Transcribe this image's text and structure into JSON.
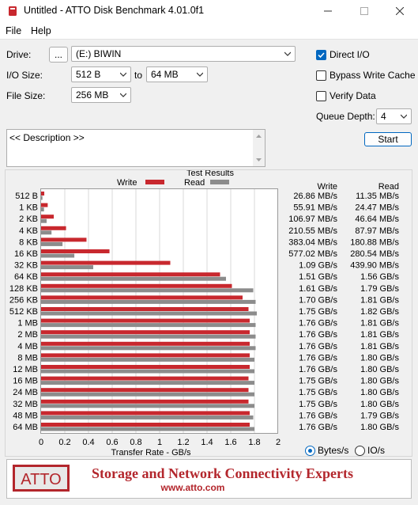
{
  "window": {
    "title": "Untitled - ATTO Disk Benchmark 4.01.0f1"
  },
  "menu": {
    "file": "File",
    "help": "Help"
  },
  "controls": {
    "drive_label": "Drive:",
    "browse_label": "...",
    "drive_value": "(E:) BIWIN",
    "io_size_label": "I/O Size:",
    "io_from": "512 B",
    "io_to_label": "to",
    "io_to": "64 MB",
    "file_size_label": "File Size:",
    "file_size": "256 MB",
    "direct_io": "Direct I/O",
    "bypass_write_cache": "Bypass Write Cache",
    "verify_data": "Verify Data",
    "queue_depth_label": "Queue Depth:",
    "queue_depth": "4",
    "start": "Start",
    "description": "<< Description >>"
  },
  "results": {
    "title": "Test Results",
    "write_legend": "Write",
    "read_legend": "Read",
    "write_header": "Write",
    "read_header": "Read",
    "rows": [
      {
        "size": "512 B",
        "write": "26.86 MB/s",
        "read": "11.35 MB/s"
      },
      {
        "size": "1 KB",
        "write": "55.91 MB/s",
        "read": "24.47 MB/s"
      },
      {
        "size": "2 KB",
        "write": "106.97 MB/s",
        "read": "46.64 MB/s"
      },
      {
        "size": "4 KB",
        "write": "210.55 MB/s",
        "read": "87.97 MB/s"
      },
      {
        "size": "8 KB",
        "write": "383.04 MB/s",
        "read": "180.88 MB/s"
      },
      {
        "size": "16 KB",
        "write": "577.02 MB/s",
        "read": "280.54 MB/s"
      },
      {
        "size": "32 KB",
        "write": "1.09 GB/s",
        "read": "439.90 MB/s"
      },
      {
        "size": "64 KB",
        "write": "1.51 GB/s",
        "read": "1.56 GB/s"
      },
      {
        "size": "128 KB",
        "write": "1.61 GB/s",
        "read": "1.79 GB/s"
      },
      {
        "size": "256 KB",
        "write": "1.70 GB/s",
        "read": "1.81 GB/s"
      },
      {
        "size": "512 KB",
        "write": "1.75 GB/s",
        "read": "1.82 GB/s"
      },
      {
        "size": "1 MB",
        "write": "1.76 GB/s",
        "read": "1.81 GB/s"
      },
      {
        "size": "2 MB",
        "write": "1.76 GB/s",
        "read": "1.81 GB/s"
      },
      {
        "size": "4 MB",
        "write": "1.76 GB/s",
        "read": "1.81 GB/s"
      },
      {
        "size": "8 MB",
        "write": "1.76 GB/s",
        "read": "1.80 GB/s"
      },
      {
        "size": "12 MB",
        "write": "1.76 GB/s",
        "read": "1.80 GB/s"
      },
      {
        "size": "16 MB",
        "write": "1.75 GB/s",
        "read": "1.80 GB/s"
      },
      {
        "size": "24 MB",
        "write": "1.75 GB/s",
        "read": "1.80 GB/s"
      },
      {
        "size": "32 MB",
        "write": "1.75 GB/s",
        "read": "1.80 GB/s"
      },
      {
        "size": "48 MB",
        "write": "1.76 GB/s",
        "read": "1.79 GB/s"
      },
      {
        "size": "64 MB",
        "write": "1.76 GB/s",
        "read": "1.80 GB/s"
      }
    ],
    "units_bytes": "Bytes/s",
    "units_io": "IO/s"
  },
  "chart_data": {
    "type": "bar",
    "orientation": "horizontal",
    "categories": [
      "512 B",
      "1 KB",
      "2 KB",
      "4 KB",
      "8 KB",
      "16 KB",
      "32 KB",
      "64 KB",
      "128 KB",
      "256 KB",
      "512 KB",
      "1 MB",
      "2 MB",
      "4 MB",
      "8 MB",
      "12 MB",
      "16 MB",
      "24 MB",
      "32 MB",
      "48 MB",
      "64 MB"
    ],
    "series": [
      {
        "name": "Write",
        "color": "#c8282e",
        "values": [
          0.02686,
          0.05591,
          0.10697,
          0.21055,
          0.38304,
          0.57702,
          1.09,
          1.51,
          1.61,
          1.7,
          1.75,
          1.76,
          1.76,
          1.76,
          1.76,
          1.76,
          1.75,
          1.75,
          1.75,
          1.76,
          1.76
        ]
      },
      {
        "name": "Read",
        "color": "#8c8c8c",
        "values": [
          0.01135,
          0.02447,
          0.04664,
          0.08797,
          0.18088,
          0.28054,
          0.4399,
          1.56,
          1.79,
          1.81,
          1.82,
          1.81,
          1.81,
          1.81,
          1.8,
          1.8,
          1.8,
          1.8,
          1.8,
          1.79,
          1.8
        ]
      }
    ],
    "title": "Test Results",
    "xlabel": "Transfer Rate - GB/s",
    "xlim": [
      0,
      2
    ],
    "xticks": [
      "0",
      "0.2",
      "0.4",
      "0.6",
      "0.8",
      "1",
      "1.2",
      "1.4",
      "1.6",
      "1.8",
      "2"
    ],
    "grid": true,
    "legend": "top"
  },
  "banner": {
    "logo": "ATTO",
    "tagline": "Storage and Network Connectivity Experts",
    "url": "www.atto.com"
  },
  "colors": {
    "accent": "#0067c0",
    "write": "#c8282e",
    "read": "#8c8c8c",
    "banner_red": "#b3262c"
  }
}
